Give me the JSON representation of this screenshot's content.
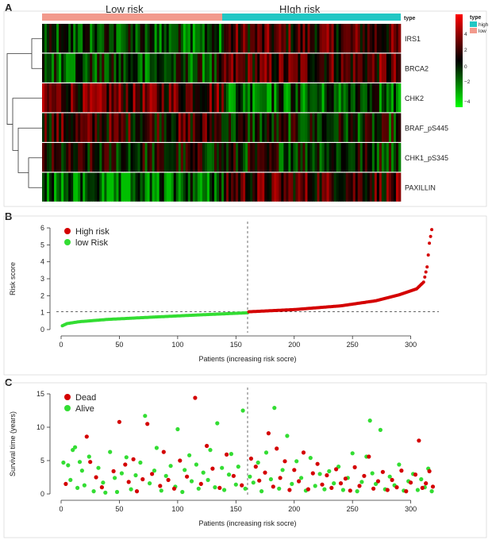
{
  "panels": {
    "a": "A",
    "b": "B",
    "c": "C"
  },
  "heatmap": {
    "group_labels": [
      "Low risk",
      "HIgh risk"
    ],
    "type_label": "type",
    "rows": [
      "IRS1",
      "BRCA2",
      "CHK2",
      "BRAF_pS445",
      "CHK1_pS345",
      "PAXILLIN"
    ],
    "legend_title": "type",
    "legend_items": [
      {
        "label": "high",
        "color": "#21c7c4"
      },
      {
        "label": "low",
        "color": "#f29a8c"
      }
    ],
    "scale_ticks": [
      "4",
      "2",
      "0",
      "−2",
      "−4"
    ],
    "colors": {
      "high": "#ff0000",
      "mid": "#000000",
      "low": "#00ff00",
      "type_high": "#21c7c4",
      "type_low": "#f29a8c"
    }
  },
  "chart_data": [
    {
      "type": "scatter",
      "panel": "B",
      "title": "",
      "xlabel": "Patients (increasing risk socre)",
      "ylabel": "Risk score",
      "xlim": [
        0,
        320
      ],
      "ylim": [
        0,
        6
      ],
      "xticks": [
        "0",
        "50",
        "100",
        "150",
        "200",
        "250",
        "300"
      ],
      "yticks": [
        "0",
        "1",
        "2",
        "3",
        "4",
        "5",
        "6"
      ],
      "cutoff_x": 160,
      "cutoff_y": 1.05,
      "legend": [
        {
          "label": "High risk",
          "color": "#d40000"
        },
        {
          "label": "low Risk",
          "color": "#33dd33"
        }
      ],
      "series": [
        {
          "name": "low Risk",
          "color": "#33dd33",
          "x_range": [
            1,
            160
          ],
          "y_points": [
            [
              1,
              0.22
            ],
            [
              5,
              0.35
            ],
            [
              15,
              0.46
            ],
            [
              40,
              0.6
            ],
            [
              80,
              0.74
            ],
            [
              120,
              0.87
            ],
            [
              160,
              0.99
            ]
          ]
        },
        {
          "name": "High risk",
          "color": "#d40000",
          "x_range": [
            161,
            320
          ],
          "y_points": [
            [
              161,
              1.05
            ],
            [
              200,
              1.18
            ],
            [
              240,
              1.4
            ],
            [
              270,
              1.7
            ],
            [
              290,
              2.05
            ],
            [
              305,
              2.4
            ],
            [
              311,
              2.8
            ],
            [
              314,
              3.7
            ],
            [
              316,
              5.1
            ],
            [
              318,
              5.9
            ]
          ]
        }
      ]
    },
    {
      "type": "scatter",
      "panel": "C",
      "title": "",
      "xlabel": "Patients (increasing risk socre)",
      "ylabel": "Survival time (years)",
      "xlim": [
        0,
        320
      ],
      "ylim": [
        0,
        15
      ],
      "xticks": [
        "0",
        "50",
        "100",
        "150",
        "200",
        "250",
        "300"
      ],
      "yticks": [
        "0",
        "5",
        "10",
        "15"
      ],
      "cutoff_x": 160,
      "legend": [
        {
          "label": "Dead",
          "color": "#d40000"
        },
        {
          "label": "Alive",
          "color": "#33dd33"
        }
      ],
      "series": [
        {
          "name": "Dead",
          "color": "#d40000",
          "points": [
            [
              4,
              1.5
            ],
            [
              22,
              8.6
            ],
            [
              25,
              4.8
            ],
            [
              30,
              2.5
            ],
            [
              35,
              1.0
            ],
            [
              45,
              3.4
            ],
            [
              50,
              10.8
            ],
            [
              55,
              4.4
            ],
            [
              58,
              1.8
            ],
            [
              62,
              5.2
            ],
            [
              65,
              0.4
            ],
            [
              70,
              2.2
            ],
            [
              74,
              10.5
            ],
            [
              78,
              3.0
            ],
            [
              85,
              1.2
            ],
            [
              88,
              6.3
            ],
            [
              92,
              2.1
            ],
            [
              97,
              0.8
            ],
            [
              102,
              5.0
            ],
            [
              108,
              2.6
            ],
            [
              115,
              14.4
            ],
            [
              120,
              1.5
            ],
            [
              125,
              7.2
            ],
            [
              130,
              3.8
            ],
            [
              136,
              0.9
            ],
            [
              142,
              5.9
            ],
            [
              148,
              2.7
            ],
            [
              155,
              1.3
            ],
            [
              163,
              5.3
            ],
            [
              167,
              4.1
            ],
            [
              170,
              2.0
            ],
            [
              175,
              3.2
            ],
            [
              178,
              9.1
            ],
            [
              182,
              1.1
            ],
            [
              185,
              6.8
            ],
            [
              188,
              2.4
            ],
            [
              192,
              4.9
            ],
            [
              196,
              0.6
            ],
            [
              200,
              3.6
            ],
            [
              204,
              1.9
            ],
            [
              208,
              6.2
            ],
            [
              212,
              0.7
            ],
            [
              216,
              3.1
            ],
            [
              220,
              4.5
            ],
            [
              224,
              1.4
            ],
            [
              228,
              2.8
            ],
            [
              232,
              0.9
            ],
            [
              236,
              3.7
            ],
            [
              240,
              1.6
            ],
            [
              244,
              2.3
            ],
            [
              248,
              0.5
            ],
            [
              252,
              4.0
            ],
            [
              256,
              1.2
            ],
            [
              260,
              2.7
            ],
            [
              264,
              5.6
            ],
            [
              268,
              0.8
            ],
            [
              272,
              1.9
            ],
            [
              276,
              3.3
            ],
            [
              280,
              0.6
            ],
            [
              284,
              2.1
            ],
            [
              288,
              1.0
            ],
            [
              292,
              3.5
            ],
            [
              296,
              0.4
            ],
            [
              300,
              1.7
            ],
            [
              304,
              2.9
            ],
            [
              307,
              8.0
            ],
            [
              310,
              0.9
            ],
            [
              313,
              1.6
            ],
            [
              316,
              3.4
            ],
            [
              319,
              1.1
            ]
          ]
        },
        {
          "name": "Alive",
          "color": "#33dd33",
          "points": [
            [
              2,
              4.7
            ],
            [
              6,
              4.3
            ],
            [
              8,
              2.1
            ],
            [
              10,
              6.6
            ],
            [
              12,
              7.0
            ],
            [
              14,
              0.9
            ],
            [
              16,
              4.8
            ],
            [
              18,
              3.5
            ],
            [
              20,
              1.3
            ],
            [
              24,
              5.6
            ],
            [
              28,
              0.4
            ],
            [
              32,
              3.9
            ],
            [
              36,
              1.7
            ],
            [
              38,
              0.2
            ],
            [
              42,
              6.3
            ],
            [
              46,
              2.4
            ],
            [
              48,
              0.3
            ],
            [
              52,
              3.1
            ],
            [
              56,
              5.5
            ],
            [
              60,
              0.7
            ],
            [
              64,
              2.8
            ],
            [
              68,
              4.7
            ],
            [
              72,
              11.7
            ],
            [
              76,
              1.6
            ],
            [
              80,
              3.5
            ],
            [
              82,
              6.9
            ],
            [
              86,
              0.5
            ],
            [
              90,
              2.7
            ],
            [
              94,
              4.2
            ],
            [
              98,
              1.1
            ],
            [
              100,
              9.7
            ],
            [
              104,
              0.3
            ],
            [
              106,
              3.6
            ],
            [
              110,
              5.8
            ],
            [
              112,
              1.9
            ],
            [
              116,
              4.4
            ],
            [
              118,
              0.8
            ],
            [
              122,
              3.2
            ],
            [
              126,
              2.1
            ],
            [
              128,
              6.6
            ],
            [
              132,
              1.0
            ],
            [
              134,
              10.6
            ],
            [
              138,
              3.9
            ],
            [
              140,
              0.6
            ],
            [
              144,
              2.9
            ],
            [
              146,
              6.0
            ],
            [
              150,
              1.4
            ],
            [
              152,
              4.1
            ],
            [
              156,
              12.5
            ],
            [
              158,
              0.8
            ],
            [
              162,
              2.6
            ],
            [
              165,
              1.7
            ],
            [
              169,
              4.7
            ],
            [
              172,
              0.4
            ],
            [
              176,
              6.2
            ],
            [
              180,
              2.2
            ],
            [
              183,
              12.9
            ],
            [
              187,
              0.8
            ],
            [
              190,
              3.6
            ],
            [
              194,
              8.7
            ],
            [
              198,
              1.5
            ],
            [
              202,
              4.9
            ],
            [
              206,
              2.4
            ],
            [
              210,
              0.5
            ],
            [
              214,
              5.4
            ],
            [
              218,
              1.2
            ],
            [
              222,
              3.0
            ],
            [
              226,
              0.7
            ],
            [
              230,
              3.4
            ],
            [
              234,
              1.6
            ],
            [
              238,
              4.1
            ],
            [
              242,
              0.6
            ],
            [
              246,
              2.4
            ],
            [
              250,
              6.1
            ],
            [
              254,
              0.4
            ],
            [
              258,
              1.8
            ],
            [
              262,
              5.6
            ],
            [
              265,
              11.0
            ],
            [
              267,
              3.1
            ],
            [
              270,
              1.5
            ],
            [
              274,
              9.6
            ],
            [
              278,
              0.7
            ],
            [
              282,
              2.6
            ],
            [
              286,
              1.3
            ],
            [
              290,
              4.4
            ],
            [
              294,
              0.5
            ],
            [
              298,
              1.9
            ],
            [
              302,
              3.0
            ],
            [
              306,
              0.6
            ],
            [
              309,
              2.2
            ],
            [
              312,
              1.0
            ],
            [
              315,
              3.8
            ],
            [
              318,
              0.4
            ]
          ]
        }
      ]
    }
  ]
}
